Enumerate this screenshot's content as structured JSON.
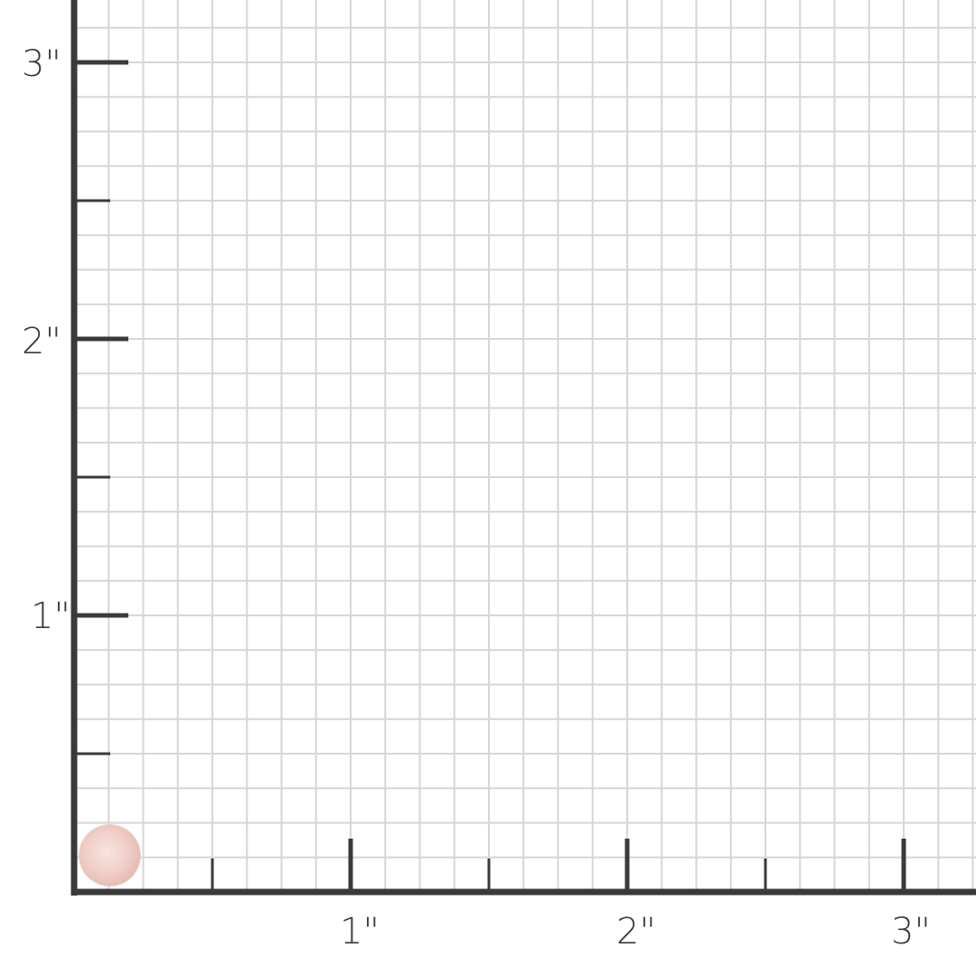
{
  "units_label": "inch",
  "x_axis": {
    "labels": [
      "1\"",
      "2\"",
      "3\""
    ],
    "values": [
      1,
      2,
      3
    ]
  },
  "y_axis": {
    "labels": [
      "1\"",
      "2\"",
      "3\""
    ],
    "values": [
      1,
      2,
      3
    ]
  },
  "grid_subdivisions_per_inch": 8,
  "product": {
    "icon": "round-rose-quartz-gem",
    "color": "#f0cfc8"
  },
  "colors": {
    "axis": "#3a3a3a",
    "grid": "#d6d6d6",
    "background": "#ffffff"
  }
}
